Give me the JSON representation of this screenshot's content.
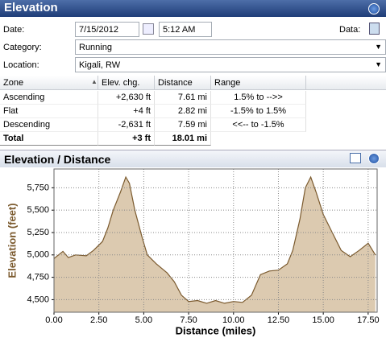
{
  "header": {
    "title": "Elevation"
  },
  "form": {
    "date_label": "Date:",
    "date": "7/15/2012",
    "time": "5:12 AM",
    "data_label": "Data:",
    "category_label": "Category:",
    "category": "Running",
    "location_label": "Location:",
    "location": "Kigali, RW"
  },
  "table": {
    "columns": [
      "Zone",
      "Elev. chg.",
      "Distance",
      "Range"
    ],
    "rows": [
      [
        "Ascending",
        "+2,630 ft",
        "7.61 mi",
        "1.5% to -->>"
      ],
      [
        "Flat",
        "+4 ft",
        "2.82 mi",
        "-1.5% to 1.5%"
      ],
      [
        "Descending",
        "-2,631 ft",
        "7.59 mi",
        "<<-- to -1.5%"
      ],
      [
        "Total",
        "+3 ft",
        "18.01 mi",
        null
      ]
    ]
  },
  "chart_data": {
    "type": "area",
    "title": "Elevation / Distance",
    "x_label": "Distance (miles)",
    "y_label": "Elevation (feet)",
    "x": [
      0,
      0.5,
      0.8,
      1.2,
      1.8,
      2.2,
      2.7,
      3.0,
      3.3,
      3.7,
      4.0,
      4.2,
      4.5,
      4.9,
      5.2,
      5.7,
      6.3,
      6.7,
      7.1,
      7.5,
      8.0,
      8.5,
      9.0,
      9.5,
      10.0,
      10.5,
      11.0,
      11.5,
      12.0,
      12.5,
      13.0,
      13.3,
      13.7,
      14.0,
      14.3,
      14.6,
      15.0,
      15.5,
      16.0,
      16.5,
      17.0,
      17.5,
      17.9
    ],
    "values": [
      4960,
      5040,
      4970,
      5000,
      4990,
      5050,
      5150,
      5300,
      5500,
      5700,
      5870,
      5800,
      5500,
      5200,
      5000,
      4900,
      4800,
      4700,
      4550,
      4480,
      4490,
      4460,
      4490,
      4460,
      4480,
      4470,
      4550,
      4780,
      4820,
      4830,
      4900,
      5050,
      5400,
      5750,
      5870,
      5700,
      5450,
      5250,
      5050,
      4980,
      5050,
      5130,
      5000
    ],
    "color": "#dccab0",
    "line_color": "#7b5a2e",
    "xlim": [
      0,
      18
    ],
    "ylim": [
      4360,
      5960
    ],
    "xticks": [
      {
        "value": 0,
        "label": "0.00"
      },
      {
        "value": 2.5,
        "label": "2.50"
      },
      {
        "value": 5,
        "label": "5.00"
      },
      {
        "value": 7.5,
        "label": "7.50"
      },
      {
        "value": 10,
        "label": "10.00"
      },
      {
        "value": 12.5,
        "label": "12.50"
      },
      {
        "value": 15,
        "label": "15.00"
      },
      {
        "value": 17.5,
        "label": "17.50"
      }
    ],
    "yticks": [
      {
        "value": 4500,
        "label": "4,500"
      },
      {
        "value": 4750,
        "label": "4,750"
      },
      {
        "value": 5000,
        "label": "5,000"
      },
      {
        "value": 5250,
        "label": "5,250"
      },
      {
        "value": 5500,
        "label": "5,500"
      },
      {
        "value": 5750,
        "label": "5,750"
      }
    ],
    "grid": true
  }
}
